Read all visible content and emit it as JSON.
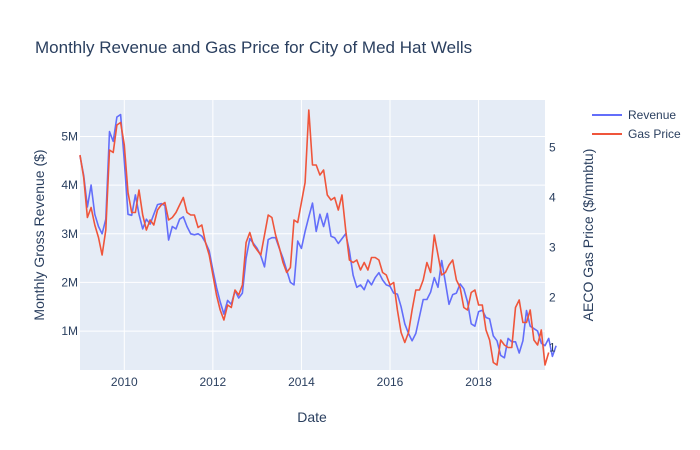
{
  "chart_data": {
    "type": "line",
    "title": "Monthly Revenue and Gas Price for City of Med Hat Wells",
    "xlabel": "Date",
    "ylabel": "Monthly Gross Revenue ($)",
    "y2label": "AECO Gas Price ($/mmbtu)",
    "x_range": [
      "2009-01",
      "2019-07"
    ],
    "y_range": [
      200000,
      5750000
    ],
    "y2_range": [
      0.55,
      5.95
    ],
    "x_ticks": [
      {
        "value": "2010-01",
        "label": "2010"
      },
      {
        "value": "2012-01",
        "label": "2012"
      },
      {
        "value": "2014-01",
        "label": "2014"
      },
      {
        "value": "2016-01",
        "label": "2016"
      },
      {
        "value": "2018-01",
        "label": "2018"
      }
    ],
    "y_ticks": [
      {
        "value": 1000000,
        "label": "1M"
      },
      {
        "value": 2000000,
        "label": "2M"
      },
      {
        "value": 3000000,
        "label": "3M"
      },
      {
        "value": 4000000,
        "label": "4M"
      },
      {
        "value": 5000000,
        "label": "5M"
      }
    ],
    "y2_ticks": [
      {
        "value": 1,
        "label": "1"
      },
      {
        "value": 2,
        "label": "2"
      },
      {
        "value": 3,
        "label": "3"
      },
      {
        "value": 4,
        "label": "4"
      },
      {
        "value": 5,
        "label": "5"
      }
    ],
    "grid": true,
    "legend_position": "top-right",
    "series": [
      {
        "name": "Revenue",
        "axis": "left",
        "color": "#636efa",
        "start": "2009-01",
        "values": [
          4600000,
          4200000,
          3550000,
          4000000,
          3400000,
          3150000,
          3000000,
          3300000,
          5100000,
          4900000,
          5400000,
          5450000,
          4500000,
          3400000,
          3380000,
          3800000,
          3400000,
          3100000,
          3300000,
          3200000,
          3400000,
          3600000,
          3620000,
          3580000,
          2870000,
          3150000,
          3100000,
          3300000,
          3350000,
          3150000,
          3000000,
          2980000,
          3000000,
          2950000,
          2820000,
          2650000,
          2250000,
          1900000,
          1600000,
          1350000,
          1630000,
          1550000,
          1830000,
          1680000,
          1780000,
          2500000,
          2900000,
          2800000,
          2700000,
          2550000,
          2320000,
          2880000,
          2920000,
          2920000,
          2700000,
          2500000,
          2250000,
          2000000,
          1950000,
          2850000,
          2700000,
          3050000,
          3350000,
          3630000,
          3050000,
          3400000,
          3150000,
          3420000,
          2950000,
          2920000,
          2800000,
          2900000,
          3000000,
          2650000,
          2150000,
          1900000,
          1950000,
          1850000,
          2050000,
          1950000,
          2100000,
          2200000,
          2050000,
          1950000,
          1920000,
          1780000,
          1760000,
          1500000,
          1150000,
          950000,
          800000,
          950000,
          1300000,
          1650000,
          1650000,
          1800000,
          2100000,
          1900000,
          2450000,
          2000000,
          1550000,
          1750000,
          1780000,
          1970000,
          1870000,
          1600000,
          1150000,
          1100000,
          1400000,
          1430000,
          1280000,
          1250000,
          900000,
          800000,
          500000,
          450000,
          850000,
          780000,
          780000,
          550000,
          800000,
          1420000,
          1100000,
          1050000,
          1000000,
          750000,
          700000,
          850000,
          480000,
          700000
        ]
      },
      {
        "name": "Gas Price",
        "axis": "right",
        "color": "#ef553b",
        "start": "2009-01",
        "values": [
          4.85,
          4.4,
          3.6,
          3.8,
          3.45,
          3.2,
          2.85,
          3.35,
          4.95,
          4.9,
          5.45,
          5.5,
          5.05,
          4.1,
          3.7,
          3.7,
          4.15,
          3.65,
          3.35,
          3.55,
          3.45,
          3.75,
          3.85,
          3.9,
          3.55,
          3.6,
          3.7,
          3.85,
          4.0,
          3.7,
          3.65,
          3.65,
          3.4,
          3.45,
          3.1,
          2.85,
          2.45,
          2.05,
          1.75,
          1.55,
          1.85,
          1.8,
          2.15,
          2.05,
          2.25,
          3.1,
          3.3,
          3.05,
          2.95,
          2.85,
          3.25,
          3.65,
          3.6,
          3.25,
          3.0,
          2.7,
          2.5,
          2.6,
          3.55,
          3.5,
          3.9,
          4.3,
          5.75,
          4.65,
          4.65,
          4.45,
          4.55,
          4.05,
          3.95,
          4.0,
          3.75,
          4.05,
          3.35,
          2.75,
          2.7,
          2.75,
          2.55,
          2.7,
          2.55,
          2.8,
          2.8,
          2.75,
          2.5,
          2.45,
          2.25,
          2.3,
          1.75,
          1.3,
          1.1,
          1.3,
          1.75,
          2.15,
          2.15,
          2.35,
          2.7,
          2.5,
          3.25,
          2.85,
          2.45,
          2.5,
          2.65,
          2.75,
          2.35,
          2.2,
          1.8,
          1.75,
          2.1,
          2.15,
          1.85,
          1.85,
          1.35,
          1.15,
          0.7,
          0.65,
          1.15,
          1.05,
          1.0,
          1.0,
          1.8,
          1.95,
          1.5,
          1.5,
          1.75,
          1.15,
          1.05,
          1.35,
          0.65,
          0.9
        ]
      }
    ]
  }
}
